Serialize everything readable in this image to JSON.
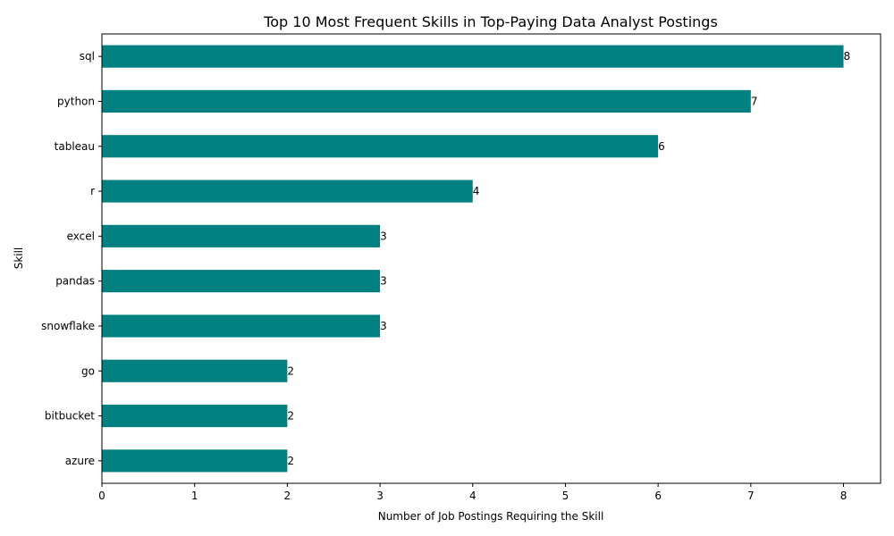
{
  "chart_data": {
    "type": "bar",
    "orientation": "horizontal",
    "title": "Top 10 Most Frequent Skills in Top-Paying Data Analyst Postings",
    "xlabel": "Number of Job Postings Requiring the Skill",
    "ylabel": "Skill",
    "categories": [
      "sql",
      "python",
      "tableau",
      "r",
      "excel",
      "pandas",
      "snowflake",
      "go",
      "bitbucket",
      "azure"
    ],
    "values": [
      8,
      7,
      6,
      4,
      3,
      3,
      3,
      2,
      2,
      2
    ],
    "xlim": [
      0,
      8.4
    ],
    "xticks": [
      0,
      1,
      2,
      3,
      4,
      5,
      6,
      7,
      8
    ],
    "bar_color": "#008080",
    "grid": false,
    "legend": "none"
  }
}
